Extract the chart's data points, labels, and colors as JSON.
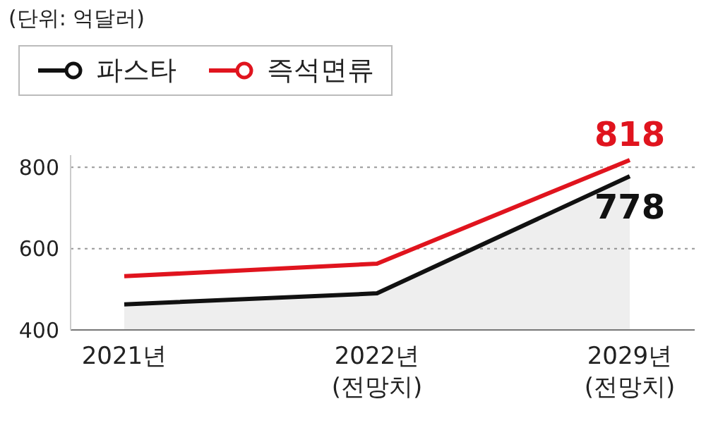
{
  "chart_data": {
    "type": "line",
    "annotations": [
      "(단위: 억달러)"
    ],
    "categories": [
      "2021년",
      "2022년\n(전망치)",
      "2029년\n(전망치)"
    ],
    "series": [
      {
        "name": "파스타",
        "type": "area",
        "color": "#111111",
        "values": [
          463,
          490,
          778
        ],
        "value_labels": [
          null,
          null,
          "778"
        ]
      },
      {
        "name": "즉석면류",
        "type": "line",
        "color": "#e0141e",
        "values": [
          532,
          563,
          818
        ],
        "value_labels": [
          null,
          null,
          "818"
        ]
      }
    ],
    "ylim": [
      400,
      830
    ],
    "yticks": [
      400,
      600,
      800
    ],
    "grid": "y",
    "legend": "top left",
    "marker": "none"
  }
}
